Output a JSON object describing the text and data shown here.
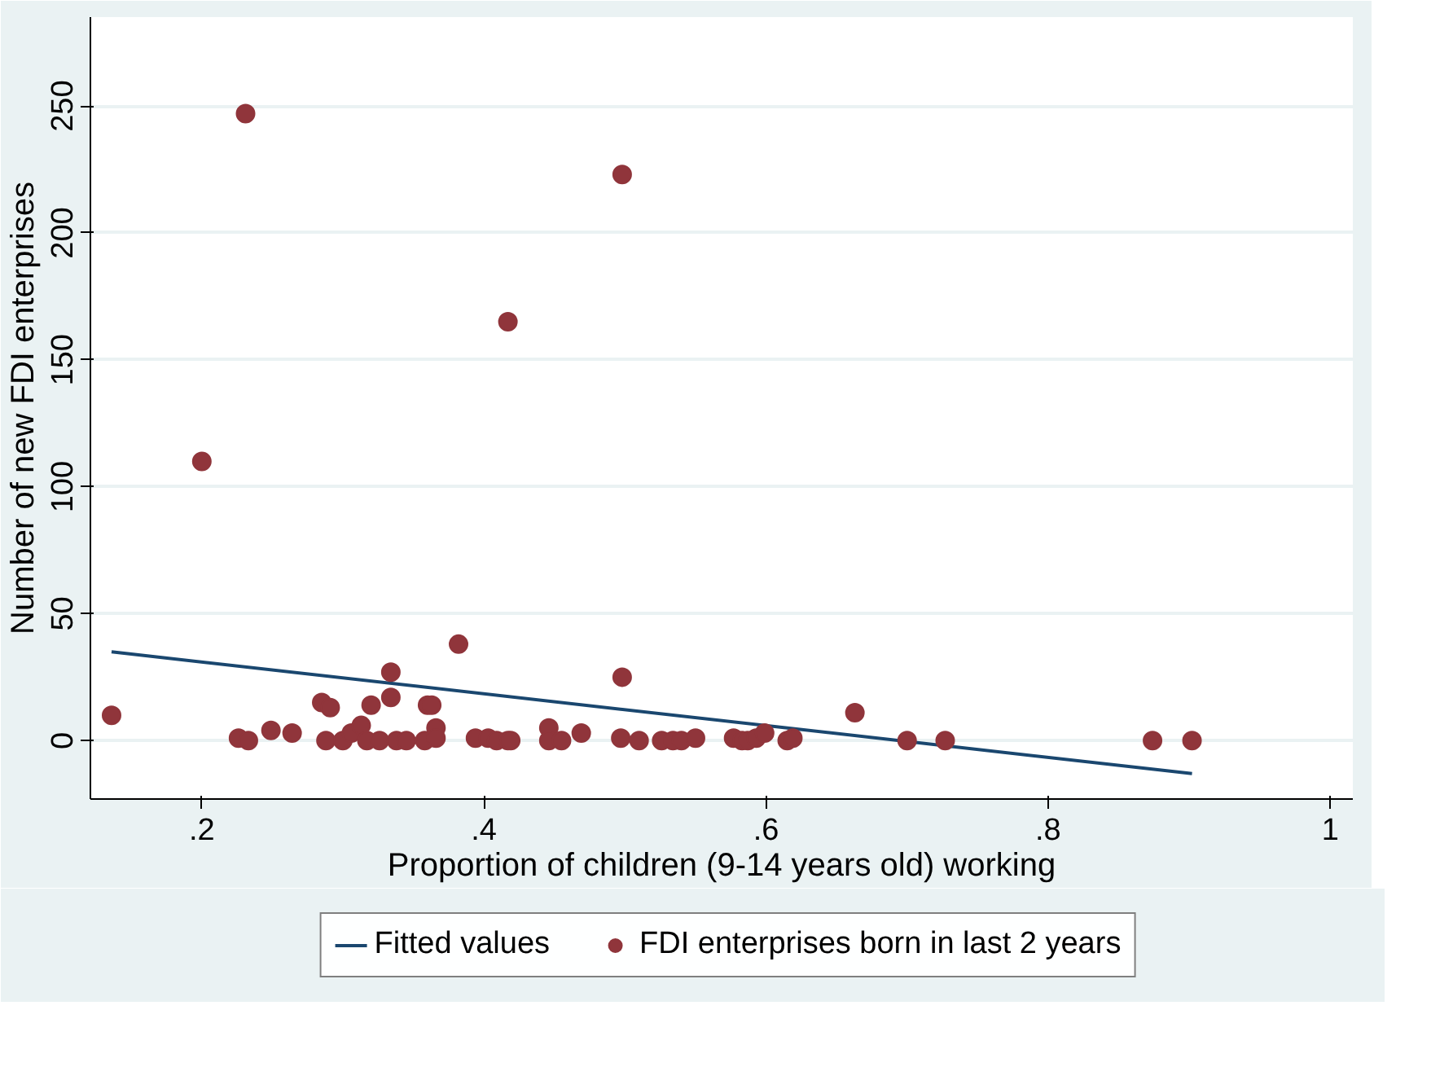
{
  "chart_data": {
    "type": "scatter",
    "xlabel": "Proportion of children (9-14 years old) working",
    "ylabel": "Number of new FDI enterprises",
    "xlim": [
      0.121,
      1.016
    ],
    "ylim": [
      -23,
      285
    ],
    "xticks": [
      {
        "value": 0.2,
        "label": ".2"
      },
      {
        "value": 0.4,
        "label": ".4"
      },
      {
        "value": 0.6,
        "label": ".6"
      },
      {
        "value": 0.8,
        "label": ".8"
      },
      1
    ],
    "yticks": [
      0,
      50,
      100,
      150,
      200,
      250
    ],
    "grid": "y",
    "legend": "bottom",
    "marker": "circle",
    "series": [
      {
        "name": "Fitted values",
        "type": "line",
        "color": "#1a476f",
        "line_style": "solid",
        "marker": "none",
        "x": [
          0.136,
          0.902
        ],
        "values": [
          35,
          -13
        ]
      },
      {
        "name": "FDI enterprises born in last 2 years",
        "color": "#90353b",
        "x": [
          0.136,
          0.2,
          0.231,
          0.226,
          0.233,
          0.249,
          0.264,
          0.285,
          0.291,
          0.288,
          0.3,
          0.306,
          0.313,
          0.317,
          0.32,
          0.326,
          0.334,
          0.334,
          0.338,
          0.345,
          0.36,
          0.363,
          0.358,
          0.366,
          0.366,
          0.382,
          0.394,
          0.403,
          0.409,
          0.417,
          0.419,
          0.417,
          0.446,
          0.446,
          0.455,
          0.469,
          0.498,
          0.498,
          0.497,
          0.51,
          0.526,
          0.534,
          0.54,
          0.55,
          0.577,
          0.583,
          0.587,
          0.593,
          0.599,
          0.615,
          0.619,
          0.663,
          0.7,
          0.727,
          0.874,
          0.902
        ],
        "values": [
          10,
          110,
          247,
          1,
          0,
          4,
          3,
          15,
          13,
          0,
          0,
          3,
          6,
          0,
          14,
          0,
          17,
          27,
          0,
          0,
          14,
          14,
          0,
          5,
          1,
          38,
          1,
          1,
          0,
          0,
          0,
          165,
          5,
          0,
          0,
          3,
          25,
          223,
          1,
          0,
          0,
          0,
          0,
          1,
          1,
          0,
          0,
          1,
          3,
          0,
          1,
          11,
          0,
          0,
          0,
          0
        ]
      }
    ]
  }
}
